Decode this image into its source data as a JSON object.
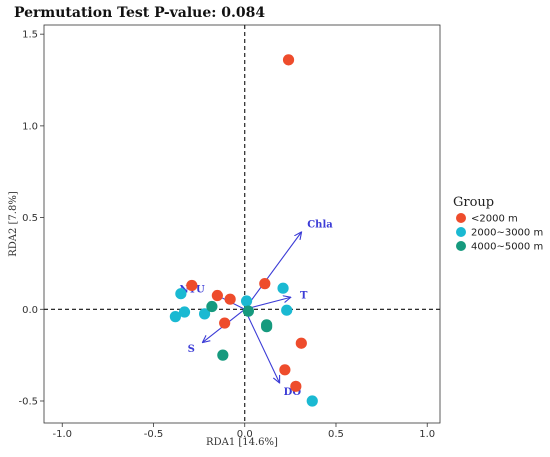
{
  "chart_data": {
    "type": "scatter",
    "title": "Permutation Test P-value: 0.084",
    "xlabel": "RDA1 [14.6%]",
    "ylabel": "RDA2 [7.8%]",
    "xlim": [
      -1.1,
      1.07
    ],
    "ylim": [
      -0.62,
      1.55
    ],
    "xticks": [
      -1.0,
      -0.5,
      0.0,
      0.5,
      1.0
    ],
    "xtick_labels": [
      "-1.0",
      "-0.5",
      "0.0",
      "0.5",
      "1.0"
    ],
    "yticks": [
      -0.5,
      0.0,
      0.5,
      1.0,
      1.5
    ],
    "ytick_labels": [
      "-0.5",
      "0.0",
      "0.5",
      "1.0",
      "1.5"
    ],
    "grid": false,
    "reference_lines": {
      "x": 0,
      "y": 0,
      "style": "dashed"
    },
    "legend": {
      "title": "Group",
      "position": "right"
    },
    "series": [
      {
        "name": "<2000 m",
        "color": "#ee4c2c",
        "points": [
          [
            0.24,
            1.36
          ],
          [
            -0.29,
            0.13
          ],
          [
            -0.08,
            0.055
          ],
          [
            -0.15,
            0.075
          ],
          [
            -0.11,
            -0.075
          ],
          [
            0.11,
            0.14
          ],
          [
            0.31,
            -0.185
          ],
          [
            0.22,
            -0.33
          ],
          [
            0.28,
            -0.42
          ]
        ]
      },
      {
        "name": "2000~3000 m",
        "color": "#1ab9d2",
        "points": [
          [
            -0.35,
            0.085
          ],
          [
            -0.33,
            -0.015
          ],
          [
            -0.38,
            -0.04
          ],
          [
            -0.22,
            -0.025
          ],
          [
            0.01,
            0.045
          ],
          [
            0.21,
            0.115
          ],
          [
            0.23,
            -0.005
          ],
          [
            0.37,
            -0.5
          ]
        ]
      },
      {
        "name": "4000~5000 m",
        "color": "#169a7e",
        "points": [
          [
            -0.18,
            0.015
          ],
          [
            0.02,
            -0.01
          ],
          [
            0.12,
            -0.085
          ],
          [
            0.12,
            -0.095
          ],
          [
            -0.12,
            -0.25
          ]
        ]
      }
    ],
    "arrows": [
      {
        "label": "Chla",
        "x": 0.31,
        "y": 0.42
      },
      {
        "label": "T",
        "x": 0.25,
        "y": 0.065
      },
      {
        "label": "NTU",
        "x": -0.17,
        "y": 0.085
      },
      {
        "label": "S",
        "x": -0.23,
        "y": -0.18
      },
      {
        "label": "DO",
        "x": 0.19,
        "y": -0.4
      }
    ]
  }
}
